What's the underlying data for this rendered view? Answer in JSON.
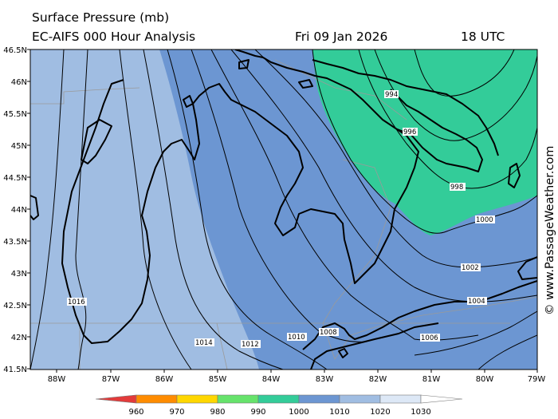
{
  "title": {
    "line1": "Surface Pressure (mb)",
    "model": "EC-AIFS 000 Hour Analysis",
    "date": "Fri 09 Jan 2026",
    "time": "18 UTC"
  },
  "credit": "© www.PassageWeather.com",
  "map": {
    "lat_labels": [
      "46.5N",
      "46N",
      "45.5N",
      "45N",
      "44.5N",
      "44N",
      "43.5N",
      "43N",
      "42.5N",
      "42N",
      "41.5N"
    ],
    "lon_labels": [
      "88W",
      "87W",
      "86W",
      "85W",
      "84W",
      "83W",
      "82W",
      "81W",
      "80W",
      "79W"
    ],
    "isobar_labels": [
      "994",
      "996",
      "998",
      "1000",
      "1002",
      "1004",
      "1006",
      "1008",
      "1010",
      "1012",
      "1014",
      "1016"
    ],
    "colors": {
      "p990_1000": "#33cc99",
      "p1000_1010": "#6c96d2",
      "p1010_1020": "#a0bde2",
      "coast": "#000000",
      "border": "#999999"
    }
  },
  "colorbar": {
    "labels": [
      "960",
      "970",
      "980",
      "990",
      "1000",
      "1010",
      "1020",
      "1030"
    ],
    "colors": [
      "#e33b3b",
      "#ff8c00",
      "#ffd700",
      "#66e36b",
      "#33cc99",
      "#6c96d2",
      "#a0bde2",
      "#dde8f6"
    ]
  }
}
